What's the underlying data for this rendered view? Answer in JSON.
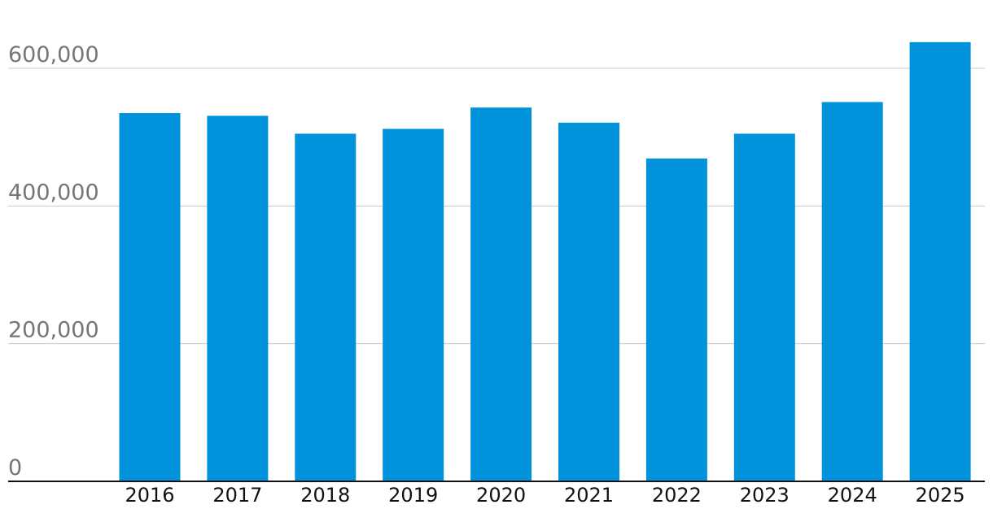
{
  "chart_data": {
    "type": "bar",
    "categories": [
      "2016",
      "2017",
      "2018",
      "2019",
      "2020",
      "2021",
      "2022",
      "2023",
      "2024",
      "2025"
    ],
    "values": [
      535000,
      531000,
      505000,
      512000,
      543000,
      521000,
      469000,
      505000,
      551000,
      638000
    ],
    "ylim": [
      0,
      600000
    ],
    "yticks": [
      {
        "value": 0,
        "label": "0"
      },
      {
        "value": 200000,
        "label": "200,000"
      },
      {
        "value": 400000,
        "label": "400,000"
      },
      {
        "value": 600000,
        "label": "600,000"
      }
    ],
    "title": "",
    "xlabel": "",
    "ylabel": "",
    "grid": true,
    "bar_color": "#0093dc"
  }
}
